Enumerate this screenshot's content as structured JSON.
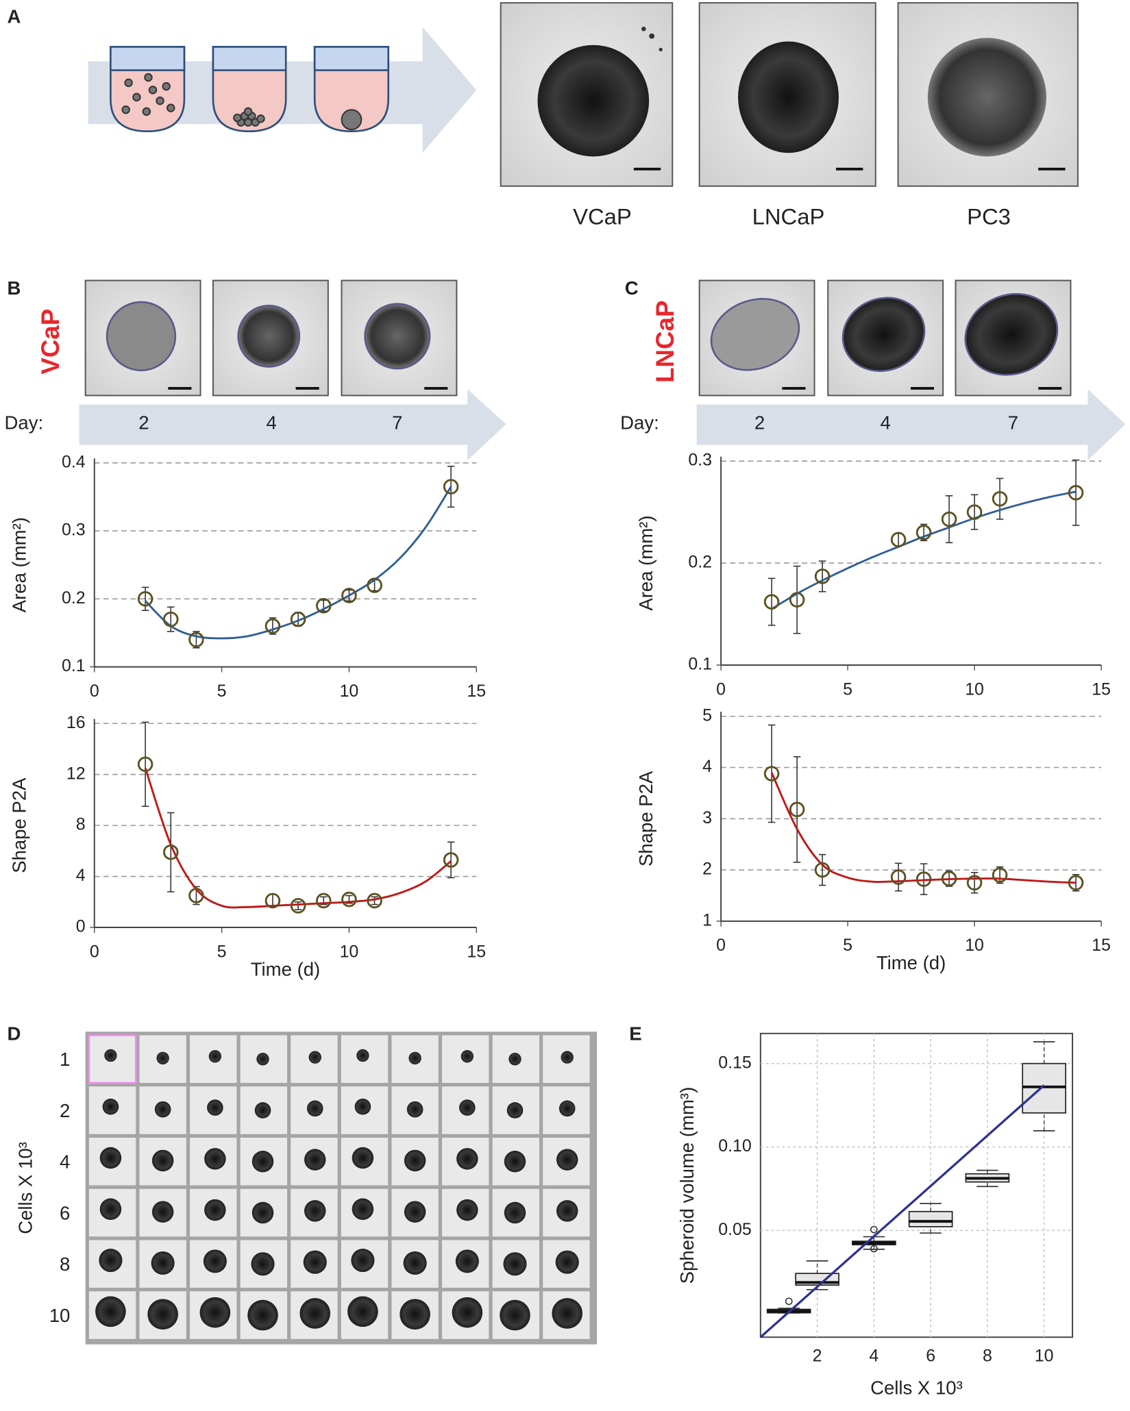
{
  "panel_labels": [
    "A",
    "B",
    "C",
    "D",
    "E"
  ],
  "panel_a": {
    "captions": [
      "VCaP",
      "LNCaP",
      "PC3"
    ]
  },
  "panel_b": {
    "cell_line": "VCaP",
    "day_label": "Day:",
    "days": [
      "2",
      "4",
      "7"
    ]
  },
  "panel_c": {
    "cell_line": "LNCaP",
    "day_label": "Day:",
    "days": [
      "2",
      "4",
      "7"
    ]
  },
  "panel_d": {
    "ylabel": "Cells X 10³",
    "rows": [
      "1",
      "2",
      "4",
      "6",
      "8",
      "10"
    ]
  },
  "chart_data": [
    {
      "type": "scatter",
      "ylabel": "Area (mm²)",
      "x": [
        2,
        3,
        4,
        7,
        8,
        9,
        10,
        11,
        14
      ],
      "values": [
        0.2,
        0.17,
        0.14,
        0.16,
        0.17,
        0.19,
        0.205,
        0.22,
        0.365
      ],
      "errors": [
        0.017,
        0.018,
        0.012,
        0.012,
        0.01,
        0.008,
        0.008,
        0.008,
        0.03
      ],
      "fit_x": [
        2,
        3,
        4,
        5,
        6,
        7,
        8,
        9,
        10,
        11,
        12,
        13,
        14
      ],
      "fit_values": [
        0.197,
        0.16,
        0.145,
        0.142,
        0.145,
        0.155,
        0.168,
        0.185,
        0.205,
        0.228,
        0.26,
        0.305,
        0.365
      ],
      "fit_color": "#2f5f95",
      "marker_color": "#5b5222",
      "xlim": [
        0,
        15
      ],
      "xticks": [
        0,
        5,
        10,
        15
      ],
      "ylim": [
        0.1,
        0.4
      ],
      "yticks": [
        0.1,
        0.2,
        0.3,
        0.4
      ],
      "grid": true
    },
    {
      "type": "scatter",
      "ylabel": "Shape P2A",
      "xlabel": "Time (d)",
      "x": [
        2,
        3,
        4,
        7,
        8,
        9,
        10,
        11,
        14
      ],
      "values": [
        12.8,
        5.9,
        2.5,
        2.1,
        1.7,
        2.1,
        2.2,
        2.1,
        5.3
      ],
      "errors": [
        3.3,
        3.1,
        0.7,
        0.5,
        0.3,
        0.3,
        0.3,
        0.3,
        1.4
      ],
      "fit_x": [
        2,
        3,
        4,
        5,
        6,
        7,
        8,
        9,
        10,
        11,
        12,
        13,
        14
      ],
      "fit_values": [
        12.5,
        6.5,
        3.0,
        1.7,
        1.6,
        1.7,
        1.8,
        1.9,
        2.0,
        2.2,
        2.7,
        3.6,
        5.2
      ],
      "fit_color": "#c01818",
      "marker_color": "#5b5222",
      "xlim": [
        0,
        15
      ],
      "xticks": [
        0,
        5,
        10,
        15
      ],
      "ylim": [
        0,
        16
      ],
      "yticks": [
        0,
        4,
        8,
        12,
        16
      ],
      "grid": true
    },
    {
      "type": "scatter",
      "ylabel": "Area (mm²)",
      "x": [
        2,
        3,
        4,
        7,
        8,
        9,
        10,
        11,
        14
      ],
      "values": [
        0.162,
        0.164,
        0.187,
        0.223,
        0.23,
        0.243,
        0.25,
        0.263,
        0.269
      ],
      "errors": [
        0.023,
        0.033,
        0.015,
        0.006,
        0.008,
        0.023,
        0.017,
        0.02,
        0.032
      ],
      "fit_x": [
        2,
        3,
        4,
        5,
        6,
        7,
        8,
        9,
        10,
        11,
        12,
        13,
        14
      ],
      "fit_values": [
        0.155,
        0.17,
        0.183,
        0.195,
        0.206,
        0.216,
        0.226,
        0.235,
        0.244,
        0.252,
        0.259,
        0.265,
        0.27
      ],
      "fit_color": "#2f5f95",
      "marker_color": "#5b5222",
      "xlim": [
        0,
        15
      ],
      "xticks": [
        0,
        5,
        10,
        15
      ],
      "ylim": [
        0.1,
        0.3
      ],
      "yticks": [
        0.1,
        0.2,
        0.3
      ],
      "grid": true
    },
    {
      "type": "scatter",
      "ylabel": "Shape P2A",
      "xlabel": "Time (d)",
      "x": [
        2,
        3,
        4,
        7,
        8,
        9,
        10,
        11,
        14
      ],
      "values": [
        3.88,
        3.18,
        2.0,
        1.86,
        1.82,
        1.83,
        1.75,
        1.9,
        1.75
      ],
      "errors": [
        0.95,
        1.03,
        0.3,
        0.27,
        0.3,
        0.15,
        0.2,
        0.16,
        0.16
      ],
      "fit_x": [
        2,
        3,
        4,
        5,
        6,
        7,
        8,
        9,
        10,
        11,
        12,
        13,
        14
      ],
      "fit_values": [
        3.9,
        2.8,
        2.1,
        1.85,
        1.77,
        1.78,
        1.8,
        1.82,
        1.83,
        1.83,
        1.8,
        1.77,
        1.75
      ],
      "fit_color": "#c01818",
      "marker_color": "#5b5222",
      "xlim": [
        0,
        15
      ],
      "xticks": [
        0,
        5,
        10,
        15
      ],
      "ylim": [
        1,
        5
      ],
      "yticks": [
        1,
        2,
        3,
        4,
        5
      ],
      "grid": true
    },
    {
      "type": "box",
      "ylabel": "Spheroid volume (mm³)",
      "xlabel": "Cells X 10³",
      "x": [
        1,
        2,
        4,
        6,
        8,
        10
      ],
      "min": [
        0.0005,
        0.0145,
        0.0387,
        0.0484,
        0.0763,
        0.1097
      ],
      "q1": [
        0.0006,
        0.0172,
        0.0414,
        0.0522,
        0.079,
        0.1204
      ],
      "median": [
        0.0016,
        0.0188,
        0.0425,
        0.0554,
        0.0812,
        0.136
      ],
      "q3": [
        0.0027,
        0.0242,
        0.0435,
        0.0613,
        0.0839,
        0.15
      ],
      "max": [
        0.0033,
        0.0317,
        0.0462,
        0.0661,
        0.086,
        0.163
      ],
      "outliers": [
        [
          0.0075
        ],
        [],
        [
          0.0505,
          0.039
        ],
        [],
        [],
        []
      ],
      "box_color": "#e6e6e6",
      "fit_x": [
        0,
        10
      ],
      "fit_values": [
        -0.014,
        0.137
      ],
      "fit_color": "#2e3192",
      "xlim": [
        0,
        11
      ],
      "xticks": [
        2,
        4,
        6,
        8,
        10
      ],
      "ylim": [
        -0.014,
        0.168
      ],
      "yticks": [
        {
          "value": 0.05,
          "label": "0.05"
        },
        {
          "value": 0.1,
          "label": "0.10"
        },
        0.15
      ],
      "grid": true
    }
  ]
}
